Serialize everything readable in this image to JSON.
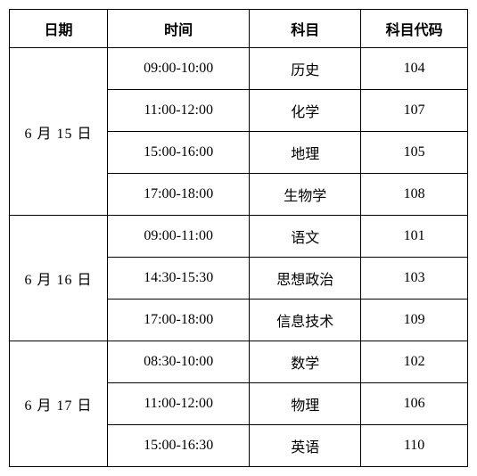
{
  "headers": {
    "date": "日期",
    "time": "时间",
    "subject": "科目",
    "code": "科目代码"
  },
  "groups": [
    {
      "date": "6 月 15 日",
      "rows": [
        {
          "time": "09:00-10:00",
          "subject": "历史",
          "code": "104"
        },
        {
          "time": "11:00-12:00",
          "subject": "化学",
          "code": "107"
        },
        {
          "time": "15:00-16:00",
          "subject": "地理",
          "code": "105"
        },
        {
          "time": "17:00-18:00",
          "subject": "生物学",
          "code": "108"
        }
      ]
    },
    {
      "date": "6 月 16 日",
      "rows": [
        {
          "time": "09:00-11:00",
          "subject": "语文",
          "code": "101"
        },
        {
          "time": "14:30-15:30",
          "subject": "思想政治",
          "code": "103"
        },
        {
          "time": "17:00-18:00",
          "subject": "信息技术",
          "code": "109"
        }
      ]
    },
    {
      "date": "6 月 17 日",
      "rows": [
        {
          "time": "08:30-10:00",
          "subject": "数学",
          "code": "102"
        },
        {
          "time": "11:00-12:00",
          "subject": "物理",
          "code": "106"
        },
        {
          "time": "15:00-16:30",
          "subject": "英语",
          "code": "110"
        }
      ]
    }
  ]
}
